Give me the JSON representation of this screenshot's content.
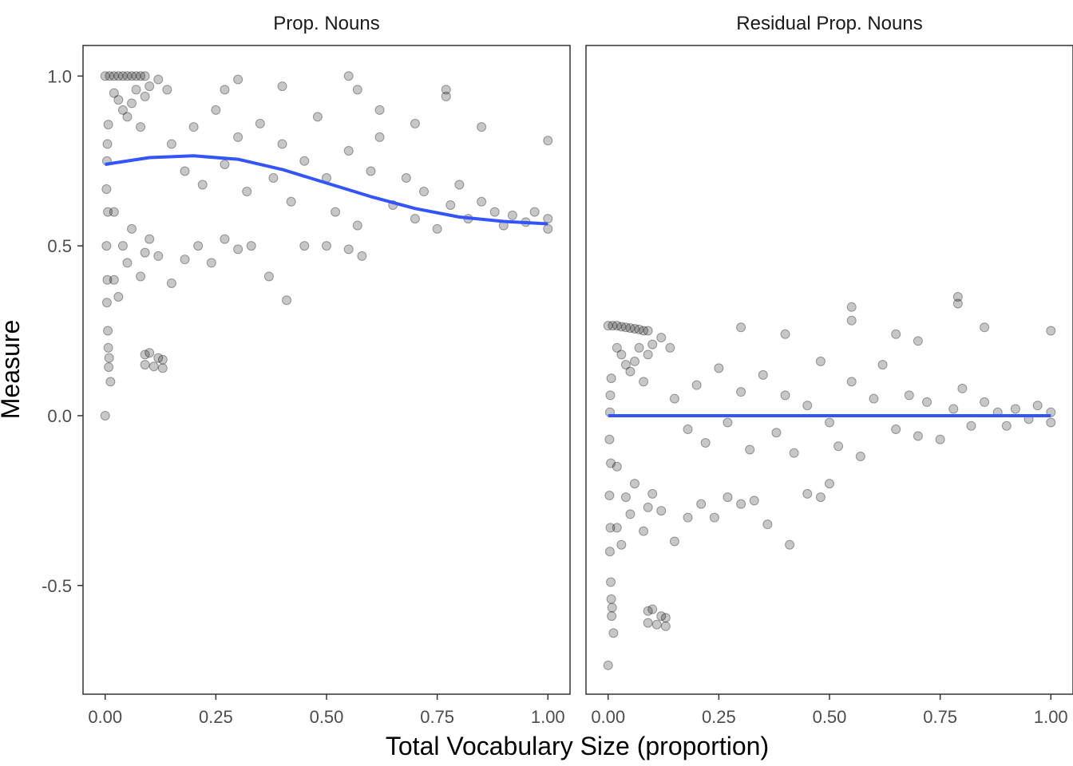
{
  "chart_data": {
    "type": "scatter",
    "xlabel": "Total Vocabulary Size (proportion)",
    "ylabel": "Measure",
    "xlim": [
      -0.05,
      1.05
    ],
    "ylim": [
      -0.82,
      1.09
    ],
    "x_ticks": [
      0,
      0.25,
      0.5,
      0.75,
      1.0
    ],
    "x_tick_labels": [
      "0.00",
      "0.25",
      "0.50",
      "0.75",
      "1.00"
    ],
    "y_ticks": [
      -0.5,
      0.0,
      0.5,
      1.0
    ],
    "y_tick_labels": [
      "-0.5",
      "0.0",
      "0.5",
      "1.0"
    ],
    "grid": false,
    "colors": {
      "points": "#000000",
      "smooth": "#3355ff",
      "panel_border": "#333333",
      "tick": "#333333"
    },
    "panels": [
      {
        "label": "Prop. Nouns",
        "smooth": {
          "x": [
            0.0,
            0.1,
            0.2,
            0.3,
            0.4,
            0.5,
            0.6,
            0.7,
            0.8,
            0.9,
            1.0
          ],
          "y": [
            0.74,
            0.76,
            0.765,
            0.755,
            0.725,
            0.685,
            0.645,
            0.61,
            0.585,
            0.572,
            0.565
          ]
        },
        "points": [
          {
            "x": 0.0,
            "y": 1.0
          },
          {
            "x": 0.0,
            "y": 0.0
          },
          {
            "x": 0.003,
            "y": 0.5
          },
          {
            "x": 0.003,
            "y": 0.667
          },
          {
            "x": 0.004,
            "y": 0.333
          },
          {
            "x": 0.004,
            "y": 0.75
          },
          {
            "x": 0.005,
            "y": 0.4
          },
          {
            "x": 0.005,
            "y": 0.8
          },
          {
            "x": 0.006,
            "y": 0.6
          },
          {
            "x": 0.006,
            "y": 0.25
          },
          {
            "x": 0.007,
            "y": 0.2
          },
          {
            "x": 0.007,
            "y": 0.857
          },
          {
            "x": 0.008,
            "y": 0.143
          },
          {
            "x": 0.009,
            "y": 0.17
          },
          {
            "x": 0.012,
            "y": 0.1
          },
          {
            "x": 0.01,
            "y": 1.0
          },
          {
            "x": 0.02,
            "y": 1.0
          },
          {
            "x": 0.03,
            "y": 1.0
          },
          {
            "x": 0.04,
            "y": 1.0
          },
          {
            "x": 0.05,
            "y": 1.0
          },
          {
            "x": 0.06,
            "y": 1.0
          },
          {
            "x": 0.07,
            "y": 1.0
          },
          {
            "x": 0.08,
            "y": 1.0
          },
          {
            "x": 0.09,
            "y": 1.0
          },
          {
            "x": 0.02,
            "y": 0.95
          },
          {
            "x": 0.03,
            "y": 0.93
          },
          {
            "x": 0.04,
            "y": 0.9
          },
          {
            "x": 0.05,
            "y": 0.88
          },
          {
            "x": 0.06,
            "y": 0.92
          },
          {
            "x": 0.07,
            "y": 0.96
          },
          {
            "x": 0.08,
            "y": 0.85
          },
          {
            "x": 0.09,
            "y": 0.94
          },
          {
            "x": 0.1,
            "y": 0.97
          },
          {
            "x": 0.12,
            "y": 0.99
          },
          {
            "x": 0.14,
            "y": 0.96
          },
          {
            "x": 0.02,
            "y": 0.6
          },
          {
            "x": 0.02,
            "y": 0.4
          },
          {
            "x": 0.03,
            "y": 0.35
          },
          {
            "x": 0.04,
            "y": 0.5
          },
          {
            "x": 0.05,
            "y": 0.45
          },
          {
            "x": 0.06,
            "y": 0.55
          },
          {
            "x": 0.08,
            "y": 0.41
          },
          {
            "x": 0.09,
            "y": 0.48
          },
          {
            "x": 0.1,
            "y": 0.52
          },
          {
            "x": 0.12,
            "y": 0.47
          },
          {
            "x": 0.15,
            "y": 0.39
          },
          {
            "x": 0.18,
            "y": 0.46
          },
          {
            "x": 0.21,
            "y": 0.5
          },
          {
            "x": 0.24,
            "y": 0.45
          },
          {
            "x": 0.27,
            "y": 0.52
          },
          {
            "x": 0.3,
            "y": 0.49
          },
          {
            "x": 0.33,
            "y": 0.5
          },
          {
            "x": 0.37,
            "y": 0.41
          },
          {
            "x": 0.41,
            "y": 0.34
          },
          {
            "x": 0.45,
            "y": 0.5
          },
          {
            "x": 0.5,
            "y": 0.5
          },
          {
            "x": 0.55,
            "y": 0.49
          },
          {
            "x": 0.58,
            "y": 0.47
          },
          {
            "x": 0.09,
            "y": 0.18
          },
          {
            "x": 0.1,
            "y": 0.185
          },
          {
            "x": 0.12,
            "y": 0.17
          },
          {
            "x": 0.13,
            "y": 0.165
          },
          {
            "x": 0.09,
            "y": 0.15
          },
          {
            "x": 0.11,
            "y": 0.145
          },
          {
            "x": 0.13,
            "y": 0.14
          },
          {
            "x": 0.15,
            "y": 0.8
          },
          {
            "x": 0.18,
            "y": 0.72
          },
          {
            "x": 0.2,
            "y": 0.85
          },
          {
            "x": 0.22,
            "y": 0.68
          },
          {
            "x": 0.25,
            "y": 0.9
          },
          {
            "x": 0.27,
            "y": 0.74
          },
          {
            "x": 0.3,
            "y": 0.82
          },
          {
            "x": 0.32,
            "y": 0.66
          },
          {
            "x": 0.35,
            "y": 0.86
          },
          {
            "x": 0.38,
            "y": 0.7
          },
          {
            "x": 0.4,
            "y": 0.8
          },
          {
            "x": 0.42,
            "y": 0.63
          },
          {
            "x": 0.45,
            "y": 0.75
          },
          {
            "x": 0.48,
            "y": 0.88
          },
          {
            "x": 0.5,
            "y": 0.7
          },
          {
            "x": 0.52,
            "y": 0.6
          },
          {
            "x": 0.55,
            "y": 0.78
          },
          {
            "x": 0.57,
            "y": 0.56
          },
          {
            "x": 0.6,
            "y": 0.72
          },
          {
            "x": 0.62,
            "y": 0.82
          },
          {
            "x": 0.65,
            "y": 0.62
          },
          {
            "x": 0.68,
            "y": 0.7
          },
          {
            "x": 0.7,
            "y": 0.58
          },
          {
            "x": 0.72,
            "y": 0.66
          },
          {
            "x": 0.75,
            "y": 0.55
          },
          {
            "x": 0.78,
            "y": 0.62
          },
          {
            "x": 0.8,
            "y": 0.68
          },
          {
            "x": 0.82,
            "y": 0.58
          },
          {
            "x": 0.85,
            "y": 0.63
          },
          {
            "x": 0.88,
            "y": 0.6
          },
          {
            "x": 0.9,
            "y": 0.56
          },
          {
            "x": 0.92,
            "y": 0.59
          },
          {
            "x": 0.95,
            "y": 0.57
          },
          {
            "x": 0.97,
            "y": 0.6
          },
          {
            "x": 1.0,
            "y": 0.55
          },
          {
            "x": 1.0,
            "y": 0.58
          },
          {
            "x": 0.27,
            "y": 0.96
          },
          {
            "x": 0.3,
            "y": 0.99
          },
          {
            "x": 0.4,
            "y": 0.97
          },
          {
            "x": 0.55,
            "y": 1.0
          },
          {
            "x": 0.57,
            "y": 0.96
          },
          {
            "x": 0.77,
            "y": 0.94
          },
          {
            "x": 0.77,
            "y": 0.96
          },
          {
            "x": 0.85,
            "y": 0.85
          },
          {
            "x": 1.0,
            "y": 0.81
          },
          {
            "x": 0.62,
            "y": 0.9
          },
          {
            "x": 0.7,
            "y": 0.86
          }
        ]
      },
      {
        "label": "Residual Prop. Nouns",
        "smooth": {
          "x": [
            0.0,
            0.25,
            0.5,
            0.75,
            1.0
          ],
          "y": [
            0.0,
            0.0,
            0.0,
            0.0,
            0.0
          ]
        },
        "points": [
          {
            "x": 0.0,
            "y": 0.265
          },
          {
            "x": 0.0,
            "y": -0.735
          },
          {
            "x": 0.003,
            "y": -0.235
          },
          {
            "x": 0.003,
            "y": -0.07
          },
          {
            "x": 0.004,
            "y": -0.4
          },
          {
            "x": 0.004,
            "y": 0.01
          },
          {
            "x": 0.005,
            "y": -0.33
          },
          {
            "x": 0.005,
            "y": 0.06
          },
          {
            "x": 0.006,
            "y": -0.14
          },
          {
            "x": 0.006,
            "y": -0.49
          },
          {
            "x": 0.007,
            "y": -0.54
          },
          {
            "x": 0.007,
            "y": 0.11
          },
          {
            "x": 0.008,
            "y": -0.59
          },
          {
            "x": 0.009,
            "y": -0.565
          },
          {
            "x": 0.012,
            "y": -0.64
          },
          {
            "x": 0.01,
            "y": 0.265
          },
          {
            "x": 0.02,
            "y": 0.265
          },
          {
            "x": 0.03,
            "y": 0.262
          },
          {
            "x": 0.04,
            "y": 0.26
          },
          {
            "x": 0.05,
            "y": 0.258
          },
          {
            "x": 0.06,
            "y": 0.256
          },
          {
            "x": 0.07,
            "y": 0.254
          },
          {
            "x": 0.08,
            "y": 0.25
          },
          {
            "x": 0.09,
            "y": 0.25
          },
          {
            "x": 0.02,
            "y": 0.2
          },
          {
            "x": 0.03,
            "y": 0.18
          },
          {
            "x": 0.04,
            "y": 0.15
          },
          {
            "x": 0.05,
            "y": 0.13
          },
          {
            "x": 0.06,
            "y": 0.16
          },
          {
            "x": 0.07,
            "y": 0.2
          },
          {
            "x": 0.08,
            "y": 0.1
          },
          {
            "x": 0.09,
            "y": 0.18
          },
          {
            "x": 0.1,
            "y": 0.21
          },
          {
            "x": 0.12,
            "y": 0.23
          },
          {
            "x": 0.14,
            "y": 0.2
          },
          {
            "x": 0.02,
            "y": -0.15
          },
          {
            "x": 0.02,
            "y": -0.33
          },
          {
            "x": 0.03,
            "y": -0.38
          },
          {
            "x": 0.04,
            "y": -0.24
          },
          {
            "x": 0.05,
            "y": -0.29
          },
          {
            "x": 0.06,
            "y": -0.2
          },
          {
            "x": 0.08,
            "y": -0.34
          },
          {
            "x": 0.09,
            "y": -0.27
          },
          {
            "x": 0.1,
            "y": -0.23
          },
          {
            "x": 0.12,
            "y": -0.28
          },
          {
            "x": 0.15,
            "y": -0.37
          },
          {
            "x": 0.18,
            "y": -0.3
          },
          {
            "x": 0.21,
            "y": -0.26
          },
          {
            "x": 0.24,
            "y": -0.3
          },
          {
            "x": 0.27,
            "y": -0.24
          },
          {
            "x": 0.3,
            "y": -0.26
          },
          {
            "x": 0.33,
            "y": -0.25
          },
          {
            "x": 0.36,
            "y": -0.32
          },
          {
            "x": 0.41,
            "y": -0.38
          },
          {
            "x": 0.45,
            "y": -0.23
          },
          {
            "x": 0.48,
            "y": -0.24
          },
          {
            "x": 0.5,
            "y": -0.2
          },
          {
            "x": 0.09,
            "y": -0.575
          },
          {
            "x": 0.1,
            "y": -0.57
          },
          {
            "x": 0.12,
            "y": -0.59
          },
          {
            "x": 0.13,
            "y": -0.595
          },
          {
            "x": 0.09,
            "y": -0.61
          },
          {
            "x": 0.11,
            "y": -0.615
          },
          {
            "x": 0.13,
            "y": -0.62
          },
          {
            "x": 0.15,
            "y": 0.05
          },
          {
            "x": 0.18,
            "y": -0.04
          },
          {
            "x": 0.2,
            "y": 0.09
          },
          {
            "x": 0.22,
            "y": -0.08
          },
          {
            "x": 0.25,
            "y": 0.14
          },
          {
            "x": 0.27,
            "y": -0.02
          },
          {
            "x": 0.3,
            "y": 0.07
          },
          {
            "x": 0.32,
            "y": -0.1
          },
          {
            "x": 0.35,
            "y": 0.12
          },
          {
            "x": 0.38,
            "y": -0.05
          },
          {
            "x": 0.4,
            "y": 0.06
          },
          {
            "x": 0.42,
            "y": -0.11
          },
          {
            "x": 0.45,
            "y": 0.03
          },
          {
            "x": 0.48,
            "y": 0.16
          },
          {
            "x": 0.5,
            "y": -0.02
          },
          {
            "x": 0.52,
            "y": -0.09
          },
          {
            "x": 0.55,
            "y": 0.1
          },
          {
            "x": 0.57,
            "y": -0.12
          },
          {
            "x": 0.6,
            "y": 0.05
          },
          {
            "x": 0.62,
            "y": 0.15
          },
          {
            "x": 0.65,
            "y": -0.04
          },
          {
            "x": 0.68,
            "y": 0.06
          },
          {
            "x": 0.7,
            "y": -0.06
          },
          {
            "x": 0.72,
            "y": 0.04
          },
          {
            "x": 0.75,
            "y": -0.07
          },
          {
            "x": 0.78,
            "y": 0.02
          },
          {
            "x": 0.8,
            "y": 0.08
          },
          {
            "x": 0.82,
            "y": -0.03
          },
          {
            "x": 0.85,
            "y": 0.04
          },
          {
            "x": 0.88,
            "y": 0.01
          },
          {
            "x": 0.9,
            "y": -0.03
          },
          {
            "x": 0.92,
            "y": 0.02
          },
          {
            "x": 0.95,
            "y": -0.01
          },
          {
            "x": 0.97,
            "y": 0.03
          },
          {
            "x": 1.0,
            "y": -0.02
          },
          {
            "x": 1.0,
            "y": 0.01
          },
          {
            "x": 0.3,
            "y": 0.26
          },
          {
            "x": 0.4,
            "y": 0.24
          },
          {
            "x": 0.55,
            "y": 0.32
          },
          {
            "x": 0.55,
            "y": 0.28
          },
          {
            "x": 0.79,
            "y": 0.35
          },
          {
            "x": 0.79,
            "y": 0.33
          },
          {
            "x": 0.85,
            "y": 0.26
          },
          {
            "x": 1.0,
            "y": 0.25
          },
          {
            "x": 0.65,
            "y": 0.24
          },
          {
            "x": 0.7,
            "y": 0.22
          }
        ]
      }
    ]
  }
}
